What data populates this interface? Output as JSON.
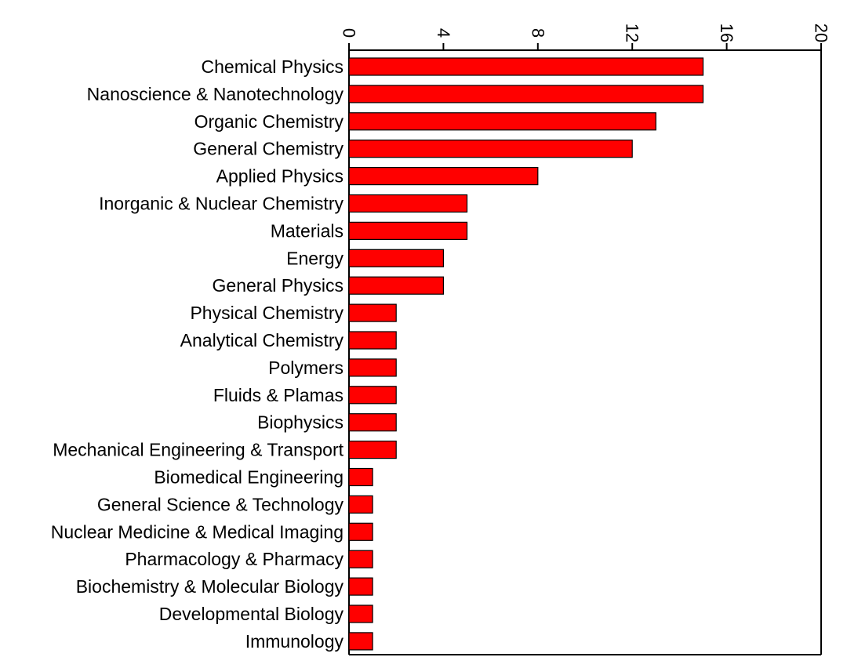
{
  "colors": {
    "bar_fill": "#ff0000",
    "bar_stroke": "#000000",
    "axis": "#000000"
  },
  "chart_data": {
    "type": "bar",
    "orientation": "horizontal",
    "x_axis_position": "top",
    "tick_label_rotation": "rotated 90 degrees",
    "categories": [
      "Chemical Physics",
      "Nanoscience & Nanotechnology",
      "Organic Chemistry",
      "General Chemistry",
      "Applied Physics",
      "Inorganic & Nuclear Chemistry",
      "Materials",
      "Energy",
      "General Physics",
      "Physical Chemistry",
      "Analytical Chemistry",
      "Polymers",
      "Fluids & Plamas",
      "Biophysics",
      "Mechanical Engineering & Transport",
      "Biomedical Engineering",
      "General Science & Technology",
      "Nuclear Medicine & Medical Imaging",
      "Pharmacology & Pharmacy",
      "Biochemistry & Molecular Biology",
      "Developmental Biology",
      "Immunology"
    ],
    "values": [
      15,
      15,
      13,
      12,
      8,
      5,
      5,
      4,
      4,
      2,
      2,
      2,
      2,
      2,
      2,
      1,
      1,
      1,
      1,
      1,
      1,
      1
    ],
    "xlim": [
      0,
      20
    ],
    "ticks": [
      0,
      4,
      8,
      12,
      16,
      20
    ],
    "tick_labels": [
      "0",
      "4",
      "8",
      "12",
      "16",
      "20"
    ],
    "title": "",
    "xlabel": "",
    "ylabel": "",
    "grid": false,
    "legend": "none"
  }
}
